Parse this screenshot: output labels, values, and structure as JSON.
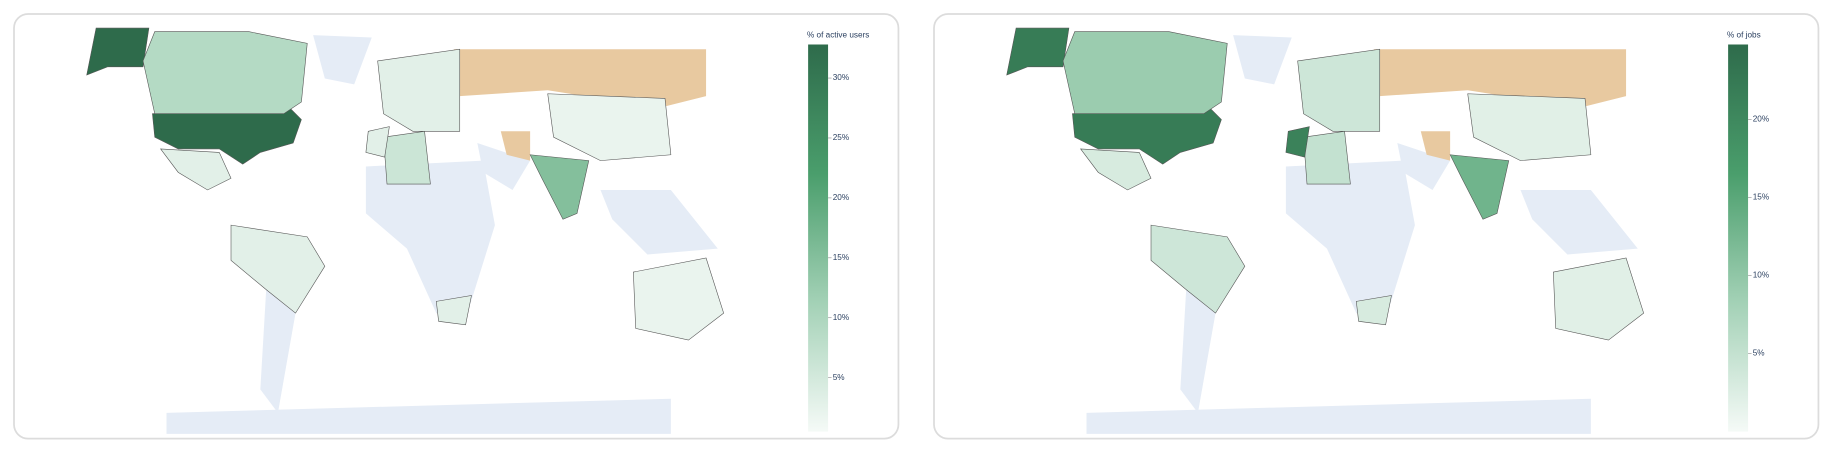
{
  "chart_data": [
    {
      "type": "choropleth",
      "colorbar_title": "% of active users",
      "values": [
        33,
        9,
        3,
        3,
        3,
        6,
        15,
        2,
        2,
        3,
        3
      ],
      "zlim": [
        0.5,
        32.8
      ],
      "zticks": [
        {
          "value": 5,
          "label": "5%"
        },
        {
          "value": 10,
          "label": "10%"
        },
        {
          "value": 15,
          "label": "15%"
        },
        {
          "value": 20,
          "label": "20%"
        },
        {
          "value": 25,
          "label": "25%"
        },
        {
          "value": 30,
          "label": "30%"
        }
      ],
      "colorscale": [
        "#f5faf7",
        "#a3d1b6",
        "#4a9e6c",
        "#2e6b4b"
      ],
      "land_color": "#e5ecf6",
      "other_color": "#e8c9a0"
    },
    {
      "type": "choropleth",
      "colorbar_title": "% of jobs",
      "values": [
        22,
        9,
        3,
        4,
        4,
        5,
        13,
        2,
        2,
        3,
        21
      ],
      "zlim": [
        0,
        24.8
      ],
      "zticks": [
        {
          "value": 5,
          "label": "5%"
        },
        {
          "value": 10,
          "label": "10%"
        },
        {
          "value": 15,
          "label": "15%"
        },
        {
          "value": 20,
          "label": "20%"
        }
      ],
      "colorscale": [
        "#f5faf7",
        "#a3d1b6",
        "#4a9e6c",
        "#2e6b4b"
      ],
      "land_color": "#e5ecf6",
      "other_color": "#e8c9a0"
    }
  ]
}
